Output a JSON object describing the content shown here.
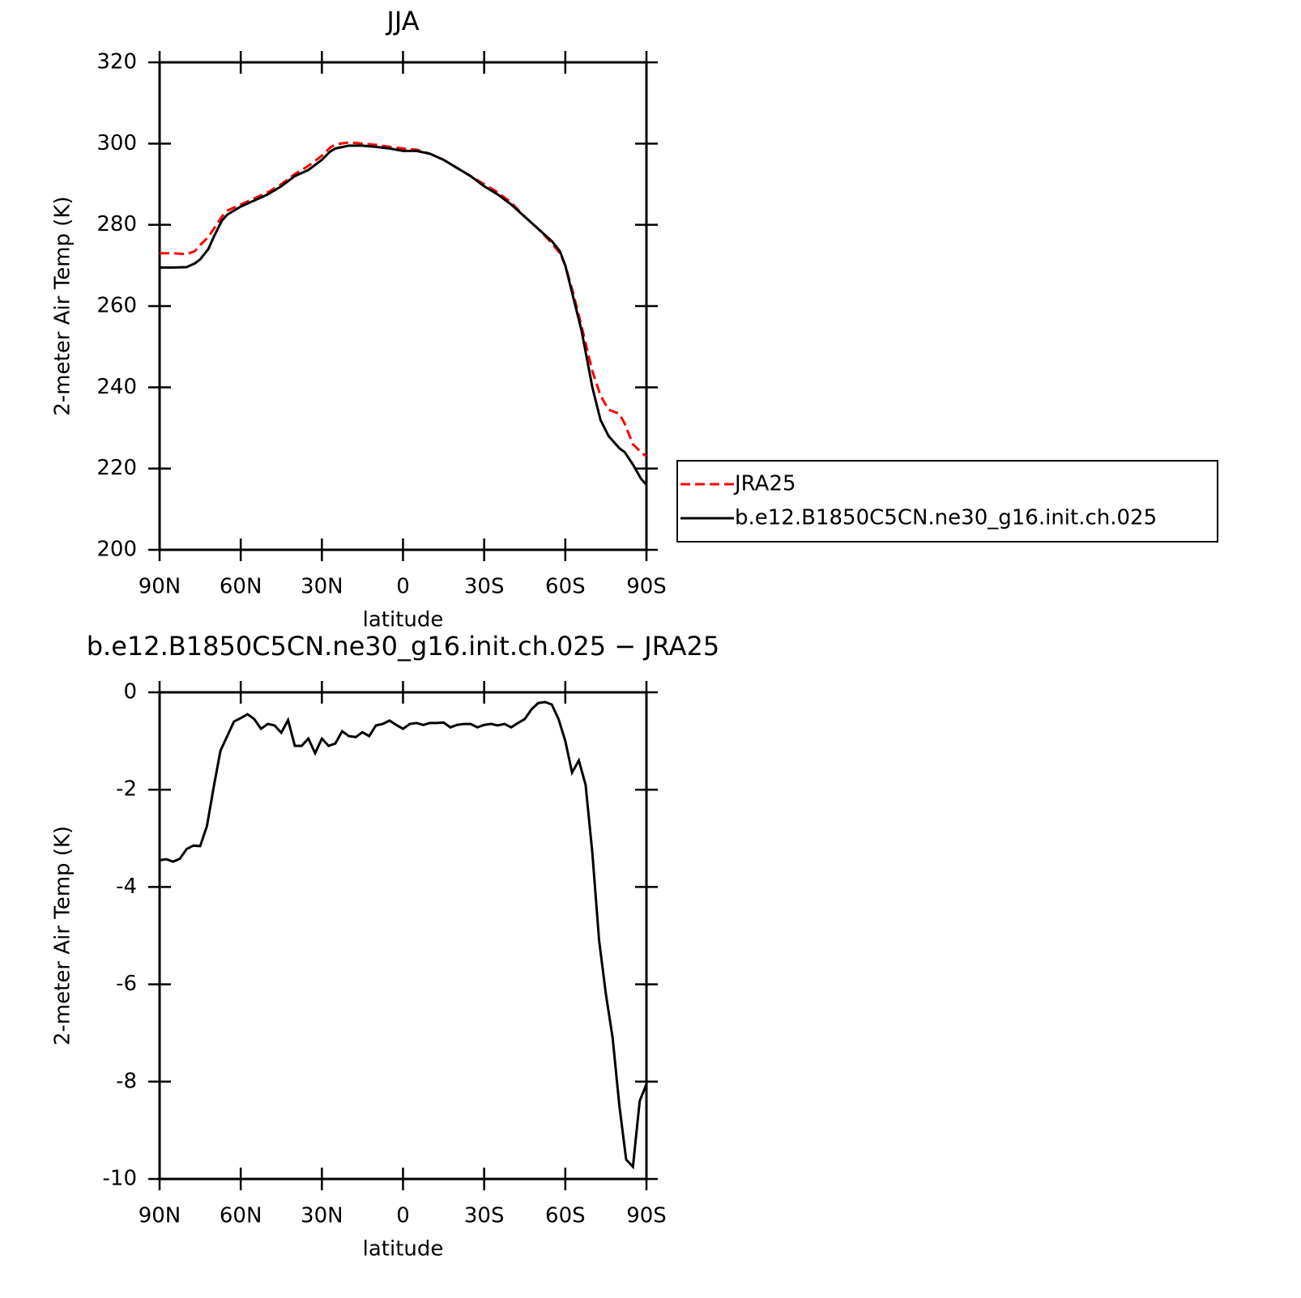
{
  "chart_data": [
    {
      "type": "line",
      "title": "JJA",
      "x_label": "latitude",
      "y_label": "2-meter Air Temp (K)",
      "x": [
        90,
        85,
        80,
        77,
        75,
        72,
        70,
        67,
        65,
        60,
        55,
        50,
        45,
        40,
        35,
        30,
        27,
        25,
        20,
        15,
        10,
        5,
        0,
        -5,
        -10,
        -15,
        -20,
        -25,
        -30,
        -35,
        -40,
        -45,
        -50,
        -55,
        -58,
        -60,
        -63,
        -66,
        -70,
        -73,
        -76,
        -80,
        -82,
        -85,
        -88,
        -90
      ],
      "series": [
        {
          "name": "JRA25",
          "color": "#ff0000",
          "line_style": "dashed",
          "values": [
            273,
            273,
            272.8,
            273.5,
            275,
            277,
            279,
            282,
            283.5,
            285,
            286.5,
            288,
            290,
            292.5,
            294.5,
            297,
            299,
            299.8,
            300.3,
            300,
            299.7,
            299.2,
            298.8,
            298.5,
            297.5,
            296,
            294,
            292,
            290,
            288,
            285.5,
            282,
            279,
            275.5,
            273,
            270,
            263,
            255,
            244,
            238,
            234.5,
            233.5,
            231,
            226,
            224,
            223
          ]
        },
        {
          "name": "b.e12.B1850C5CN.ne30_g16.init.ch.025",
          "color": "#000000",
          "line_style": "solid",
          "values": [
            269.5,
            269.5,
            269.6,
            270.5,
            271.5,
            274,
            277,
            281,
            282.5,
            284.5,
            286,
            287.5,
            289.5,
            292,
            293.5,
            296,
            298,
            298.8,
            299.5,
            299.5,
            299.2,
            298.8,
            298.2,
            298.2,
            297.5,
            296,
            294,
            292,
            289.5,
            287.5,
            285,
            282,
            279,
            276,
            273.5,
            270,
            262,
            254,
            240,
            232,
            228,
            225,
            224,
            221,
            217.5,
            216
          ]
        }
      ],
      "xlim": [
        90,
        -90
      ],
      "xticks": [
        {
          "value": 90,
          "label": "90N"
        },
        {
          "value": 60,
          "label": "60N"
        },
        {
          "value": 30,
          "label": "30N"
        },
        0,
        {
          "value": -30,
          "label": "30S"
        },
        {
          "value": -60,
          "label": "60S"
        },
        {
          "value": -90,
          "label": "90S"
        }
      ],
      "ylim": [
        200,
        320
      ],
      "yticks": [
        200,
        220,
        240,
        260,
        280,
        300,
        320
      ],
      "legend": "right"
    },
    {
      "type": "line",
      "title": "b.e12.B1850C5CN.ne30_g16.init.ch.025 − JRA25",
      "x_label": "latitude",
      "y_label": "2-meter Air Temp (K)",
      "x": [
        90,
        87.5,
        85,
        82.5,
        80,
        77.5,
        75,
        72.5,
        70,
        67.5,
        65,
        62.5,
        60,
        57.5,
        55,
        52.5,
        50,
        47.5,
        45,
        42.5,
        40,
        37.5,
        35,
        32.5,
        30,
        27.5,
        25,
        22.5,
        20,
        17.5,
        15,
        12.5,
        10,
        7.5,
        5,
        2.5,
        0,
        -2.5,
        -5,
        -7.5,
        -10,
        -12.5,
        -15,
        -17.5,
        -20,
        -22.5,
        -25,
        -27.5,
        -30,
        -32.5,
        -35,
        -37.5,
        -40,
        -42.5,
        -45,
        -47.5,
        -50,
        -52.5,
        -55,
        -57.5,
        -60,
        -62.5,
        -65,
        -67.5,
        -70,
        -72.5,
        -75,
        -77.5,
        -80,
        -82.5,
        -85,
        -87.5,
        -90
      ],
      "values": [
        -3.45,
        -3.43,
        -3.48,
        -3.42,
        -3.22,
        -3.15,
        -3.16,
        -2.75,
        -1.95,
        -1.2,
        -0.9,
        -0.6,
        -0.53,
        -0.45,
        -0.55,
        -0.75,
        -0.65,
        -0.68,
        -0.83,
        -0.57,
        -1.1,
        -1.1,
        -0.95,
        -1.25,
        -0.95,
        -1.1,
        -1.05,
        -0.8,
        -0.9,
        -0.92,
        -0.82,
        -0.9,
        -0.68,
        -0.65,
        -0.58,
        -0.67,
        -0.75,
        -0.65,
        -0.63,
        -0.67,
        -0.63,
        -0.63,
        -0.62,
        -0.72,
        -0.67,
        -0.65,
        -0.65,
        -0.72,
        -0.67,
        -0.65,
        -0.68,
        -0.65,
        -0.72,
        -0.63,
        -0.55,
        -0.35,
        -0.22,
        -0.2,
        -0.25,
        -0.55,
        -1.0,
        -1.65,
        -1.4,
        -1.9,
        -3.3,
        -5.1,
        -6.2,
        -7.1,
        -8.5,
        -9.6,
        -9.75,
        -8.4,
        -8.05
      ],
      "color": "#000000",
      "xlim": [
        90,
        -90
      ],
      "xticks": [
        {
          "value": 90,
          "label": "90N"
        },
        {
          "value": 60,
          "label": "60N"
        },
        {
          "value": 30,
          "label": "30N"
        },
        0,
        {
          "value": -30,
          "label": "30S"
        },
        {
          "value": -60,
          "label": "60S"
        },
        {
          "value": -90,
          "label": "90S"
        }
      ],
      "ylim": [
        -10,
        0
      ],
      "yticks": [
        -10,
        -8,
        -6,
        -4,
        -2,
        0
      ]
    }
  ]
}
